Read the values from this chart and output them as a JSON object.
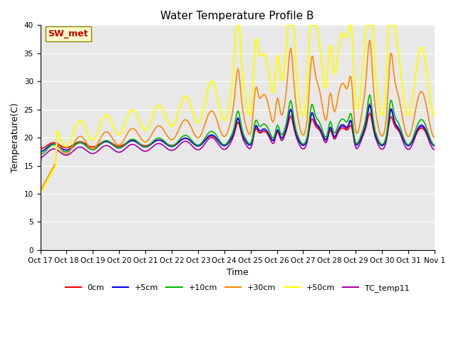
{
  "title": "Water Temperature Profile B",
  "xlabel": "Time",
  "ylabel": "Temperature(C)",
  "ylim": [
    0,
    40
  ],
  "yticks": [
    0,
    5,
    10,
    15,
    20,
    25,
    30,
    35,
    40
  ],
  "series_names": [
    "0cm",
    "+5cm",
    "+10cm",
    "+30cm",
    "+50cm",
    "TC_temp11"
  ],
  "series_colors": [
    "#ff0000",
    "#0000ff",
    "#00bb00",
    "#ff8800",
    "#ffff00",
    "#aa00aa"
  ],
  "line_widths": [
    1.2,
    1.2,
    1.2,
    1.2,
    1.5,
    1.2
  ],
  "sw_met_label": "SW_met",
  "sw_met_color": "#cc0000",
  "sw_met_bg": "#ffffcc",
  "bg_color": "#e8e8e8",
  "x_tick_labels": [
    "Oct 17",
    "Oct 18",
    "Oct 19",
    "Oct 20",
    "Oct 21",
    "Oct 22",
    "Oct 23",
    "Oct 24",
    "Oct 25",
    "Oct 26",
    "Oct 27",
    "Oct 28",
    "Oct 29",
    "Oct 30",
    "Oct 31",
    "Nov 1"
  ],
  "n_points": 360,
  "fig_width": 6.4,
  "fig_height": 4.8,
  "dpi": 100
}
